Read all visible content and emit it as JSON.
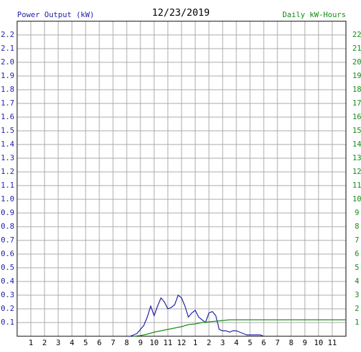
{
  "chart_data": {
    "type": "line",
    "title": "12/23/2019",
    "ylabel": "Power Output (kW)",
    "y2label": "Daily kW-Hours",
    "ylabel_color": "#1c1ca8",
    "y2label_color": "#138a13",
    "xlim": [
      0,
      24
    ],
    "xticks": [
      1,
      2,
      3,
      4,
      5,
      6,
      7,
      8,
      9,
      10,
      11,
      12,
      {
        "value": 13,
        "label": "1"
      },
      {
        "value": 14,
        "label": "2"
      },
      {
        "value": 15,
        "label": "3"
      },
      {
        "value": 16,
        "label": "4"
      },
      {
        "value": 17,
        "label": "5"
      },
      {
        "value": 18,
        "label": "6"
      },
      {
        "value": 19,
        "label": "7"
      },
      {
        "value": 20,
        "label": "8"
      },
      {
        "value": 21,
        "label": "9"
      },
      {
        "value": 22,
        "label": "10"
      },
      {
        "value": 23,
        "label": "11"
      }
    ],
    "ylim": [
      0,
      2.3
    ],
    "yticks": [
      0.1,
      0.2,
      0.3,
      0.4,
      0.5,
      0.6,
      0.7,
      0.8,
      0.9,
      {
        "value": 1,
        "label": "1.0"
      },
      1.1,
      1.2,
      1.3,
      1.4,
      1.5,
      1.6,
      1.7,
      1.8,
      1.9,
      {
        "value": 2,
        "label": "2.0"
      },
      2.1,
      2.2
    ],
    "y2lim": [
      0,
      23
    ],
    "y2ticks": [
      1,
      2,
      3,
      4,
      5,
      6,
      7,
      8,
      9,
      10,
      11,
      12,
      13,
      14,
      15,
      16,
      17,
      18,
      19,
      20,
      21,
      22
    ],
    "grid": true,
    "series": [
      {
        "name": "Power Output (kW)",
        "color": "#1c1ca8",
        "axis": "y",
        "x": [
          8,
          8.25,
          8.5,
          8.75,
          9,
          9.25,
          9.5,
          9.75,
          10,
          10.25,
          10.5,
          10.75,
          11,
          11.25,
          11.5,
          11.75,
          12,
          12.25,
          12.5,
          12.75,
          13,
          13.25,
          13.5,
          13.75,
          14,
          14.25,
          14.5,
          14.75,
          15,
          15.25,
          15.5,
          15.75,
          16,
          16.25,
          16.5,
          16.75,
          17,
          17.25,
          17.5,
          17.75,
          18
        ],
        "values": [
          0,
          0,
          0.01,
          0.02,
          0.05,
          0.08,
          0.14,
          0.22,
          0.15,
          0.22,
          0.28,
          0.25,
          0.2,
          0.21,
          0.23,
          0.3,
          0.28,
          0.22,
          0.14,
          0.17,
          0.19,
          0.14,
          0.12,
          0.1,
          0.17,
          0.18,
          0.15,
          0.05,
          0.04,
          0.04,
          0.03,
          0.04,
          0.04,
          0.03,
          0.02,
          0.01,
          0.01,
          0.01,
          0.01,
          0.01,
          0
        ]
      },
      {
        "name": "Daily kW-Hours",
        "color": "#138a13",
        "axis": "y2",
        "x": [
          8.5,
          9,
          9.5,
          10,
          10.5,
          11,
          11.5,
          12,
          12.5,
          13,
          13.5,
          14,
          14.5,
          15,
          15.5,
          16,
          24
        ],
        "values": [
          0,
          0.05,
          0.15,
          0.3,
          0.4,
          0.5,
          0.6,
          0.7,
          0.85,
          0.9,
          1.0,
          1.05,
          1.1,
          1.15,
          1.2,
          1.2,
          1.2
        ]
      }
    ]
  }
}
